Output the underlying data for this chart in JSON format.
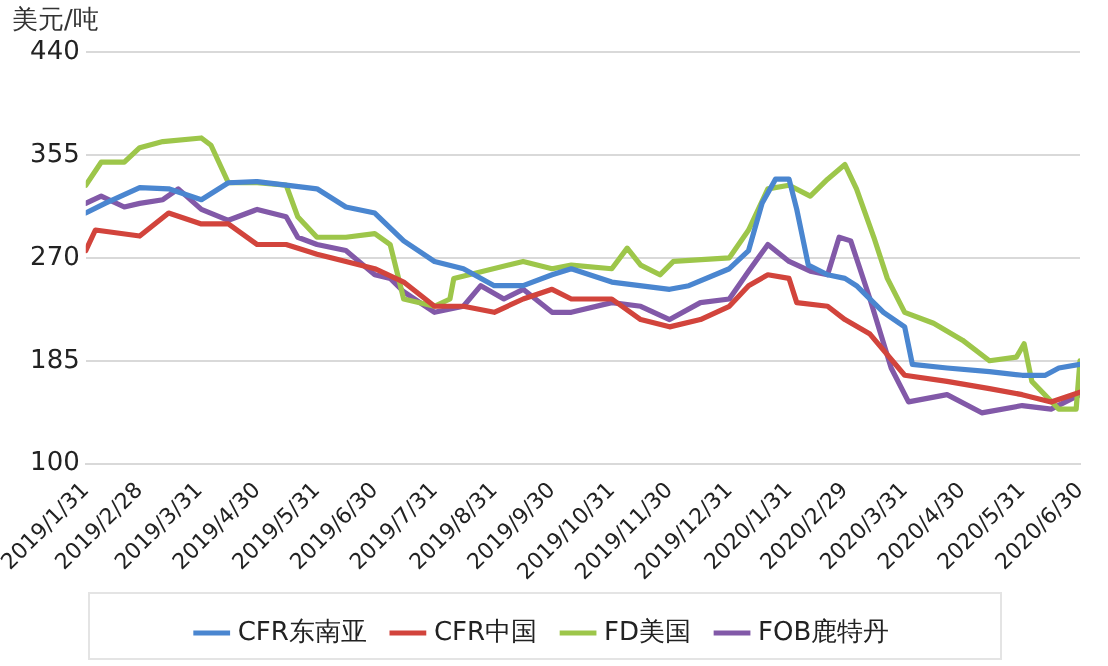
{
  "chart_data": {
    "type": "line",
    "ylabel": "美元/吨",
    "ylim": [
      100,
      440
    ],
    "yticks": [
      100,
      185,
      270,
      355,
      440
    ],
    "xlim": [
      "2019-01-31",
      "2020-06-30"
    ],
    "xticks": [
      {
        "value": "2019-01-31",
        "label": "2019/1/31"
      },
      {
        "value": "2019-02-28",
        "label": "2019/2/28"
      },
      {
        "value": "2019-03-31",
        "label": "2019/3/31"
      },
      {
        "value": "2019-04-30",
        "label": "2019/4/30"
      },
      {
        "value": "2019-05-31",
        "label": "2019/5/31"
      },
      {
        "value": "2019-06-30",
        "label": "2019/6/30"
      },
      {
        "value": "2019-07-31",
        "label": "2019/7/31"
      },
      {
        "value": "2019-08-31",
        "label": "2019/8/31"
      },
      {
        "value": "2019-09-30",
        "label": "2019/9/30"
      },
      {
        "value": "2019-10-31",
        "label": "2019/10/31"
      },
      {
        "value": "2019-11-30",
        "label": "2019/11/30"
      },
      {
        "value": "2019-12-31",
        "label": "2019/12/31"
      },
      {
        "value": "2020-01-31",
        "label": "2020/1/31"
      },
      {
        "value": "2020-02-29",
        "label": "2020/2/29"
      },
      {
        "value": "2020-03-31",
        "label": "2020/3/31"
      },
      {
        "value": "2020-04-30",
        "label": "2020/4/30"
      },
      {
        "value": "2020-05-31",
        "label": "2020/5/31"
      },
      {
        "value": "2020-06-30",
        "label": "2020/6/30"
      }
    ],
    "grid": "y",
    "legend": "bottom",
    "marker": "none",
    "line_style": "solid",
    "series": [
      {
        "name": "CFR东南亚",
        "color": "#4a86d0",
        "x": [
          "2019-01-31",
          "2019-02-10",
          "2019-02-28",
          "2019-03-15",
          "2019-04-01",
          "2019-04-15",
          "2019-04-30",
          "2019-05-15",
          "2019-05-31",
          "2019-06-15",
          "2019-06-30",
          "2019-07-15",
          "2019-07-31",
          "2019-08-15",
          "2019-08-31",
          "2019-09-15",
          "2019-09-30",
          "2019-10-10",
          "2019-10-31",
          "2019-11-30",
          "2019-12-10",
          "2019-12-31",
          "2020-01-10",
          "2020-01-17",
          "2020-01-24",
          "2020-01-31",
          "2020-02-04",
          "2020-02-10",
          "2020-02-20",
          "2020-02-29",
          "2020-03-06",
          "2020-03-20",
          "2020-03-31",
          "2020-04-04",
          "2020-04-22",
          "2020-05-14",
          "2020-05-31",
          "2020-06-12",
          "2020-06-19",
          "2020-06-30"
        ],
        "values": [
          307,
          315,
          328,
          327,
          318,
          332,
          333,
          330,
          327,
          312,
          307,
          284,
          267,
          261,
          247,
          247,
          256,
          261,
          250,
          244,
          247,
          261,
          276,
          315,
          335,
          335,
          310,
          264,
          256,
          253,
          247,
          225,
          213,
          182,
          179,
          176,
          173,
          173,
          179,
          182
        ]
      },
      {
        "name": "CFR中国",
        "color": "#d2443c",
        "x": [
          "2019-01-31",
          "2019-02-05",
          "2019-02-28",
          "2019-03-15",
          "2019-04-01",
          "2019-04-15",
          "2019-04-30",
          "2019-05-15",
          "2019-05-31",
          "2019-06-15",
          "2019-06-30",
          "2019-07-15",
          "2019-07-31",
          "2019-08-15",
          "2019-08-31",
          "2019-09-15",
          "2019-09-30",
          "2019-10-10",
          "2019-10-31",
          "2019-11-15",
          "2019-11-30",
          "2019-12-16",
          "2019-12-31",
          "2020-01-10",
          "2020-01-20",
          "2020-01-31",
          "2020-02-04",
          "2020-02-20",
          "2020-02-29",
          "2020-03-13",
          "2020-03-31",
          "2020-04-22",
          "2020-05-14",
          "2020-05-31",
          "2020-06-15",
          "2020-06-30"
        ],
        "values": [
          276,
          293,
          288,
          307,
          298,
          298,
          281,
          281,
          273,
          267,
          261,
          250,
          230,
          230,
          225,
          236,
          244,
          236,
          236,
          219,
          213,
          219,
          230,
          247,
          256,
          253,
          233,
          230,
          219,
          207,
          173,
          168,
          162,
          157,
          151,
          159
        ]
      },
      {
        "name": "FD美国",
        "color": "#9dc64a",
        "x": [
          "2019-01-31",
          "2019-02-08",
          "2019-02-20",
          "2019-02-28",
          "2019-03-12",
          "2019-04-01",
          "2019-04-06",
          "2019-04-15",
          "2019-04-30",
          "2019-05-15",
          "2019-05-21",
          "2019-05-31",
          "2019-06-15",
          "2019-06-30",
          "2019-07-08",
          "2019-07-15",
          "2019-07-31",
          "2019-08-08",
          "2019-08-10",
          "2019-09-15",
          "2019-09-30",
          "2019-10-10",
          "2019-10-31",
          "2019-11-08",
          "2019-11-15",
          "2019-11-25",
          "2019-12-02",
          "2019-12-31",
          "2020-01-10",
          "2020-01-20",
          "2020-01-31",
          "2020-02-11",
          "2020-02-20",
          "2020-02-29",
          "2020-03-06",
          "2020-03-15",
          "2020-03-22",
          "2020-03-31",
          "2020-04-15",
          "2020-04-30",
          "2020-05-14",
          "2020-05-28",
          "2020-06-01",
          "2020-06-05",
          "2020-06-19",
          "2020-06-28",
          "2020-06-30"
        ],
        "values": [
          330,
          349,
          349,
          361,
          366,
          369,
          363,
          332,
          332,
          330,
          304,
          287,
          287,
          290,
          281,
          236,
          230,
          236,
          253,
          267,
          261,
          264,
          261,
          278,
          264,
          256,
          267,
          270,
          293,
          327,
          330,
          321,
          335,
          347,
          327,
          287,
          253,
          225,
          216,
          202,
          185,
          188,
          199,
          168,
          145,
          145,
          185
        ]
      },
      {
        "name": "FOB鹿特丹",
        "color": "#8259a8",
        "x": [
          "2019-01-31",
          "2019-02-08",
          "2019-02-20",
          "2019-02-28",
          "2019-03-12",
          "2019-03-20",
          "2019-04-01",
          "2019-04-15",
          "2019-04-30",
          "2019-05-15",
          "2019-05-21",
          "2019-05-31",
          "2019-06-15",
          "2019-06-30",
          "2019-07-08",
          "2019-07-15",
          "2019-07-31",
          "2019-08-15",
          "2019-08-24",
          "2019-09-05",
          "2019-09-15",
          "2019-09-30",
          "2019-10-10",
          "2019-10-31",
          "2019-11-15",
          "2019-11-30",
          "2019-12-16",
          "2019-12-31",
          "2020-01-10",
          "2020-01-20",
          "2020-01-31",
          "2020-02-11",
          "2020-02-20",
          "2020-02-26",
          "2020-03-03",
          "2020-03-13",
          "2020-03-24",
          "2020-04-02",
          "2020-04-22",
          "2020-05-10",
          "2020-05-31",
          "2020-06-15",
          "2020-06-30"
        ],
        "values": [
          315,
          321,
          312,
          315,
          318,
          327,
          310,
          301,
          310,
          304,
          287,
          281,
          276,
          256,
          253,
          242,
          225,
          230,
          247,
          236,
          244,
          225,
          225,
          233,
          230,
          219,
          233,
          236,
          259,
          281,
          267,
          259,
          256,
          287,
          284,
          236,
          179,
          151,
          157,
          142,
          148,
          145,
          157
        ]
      }
    ]
  }
}
